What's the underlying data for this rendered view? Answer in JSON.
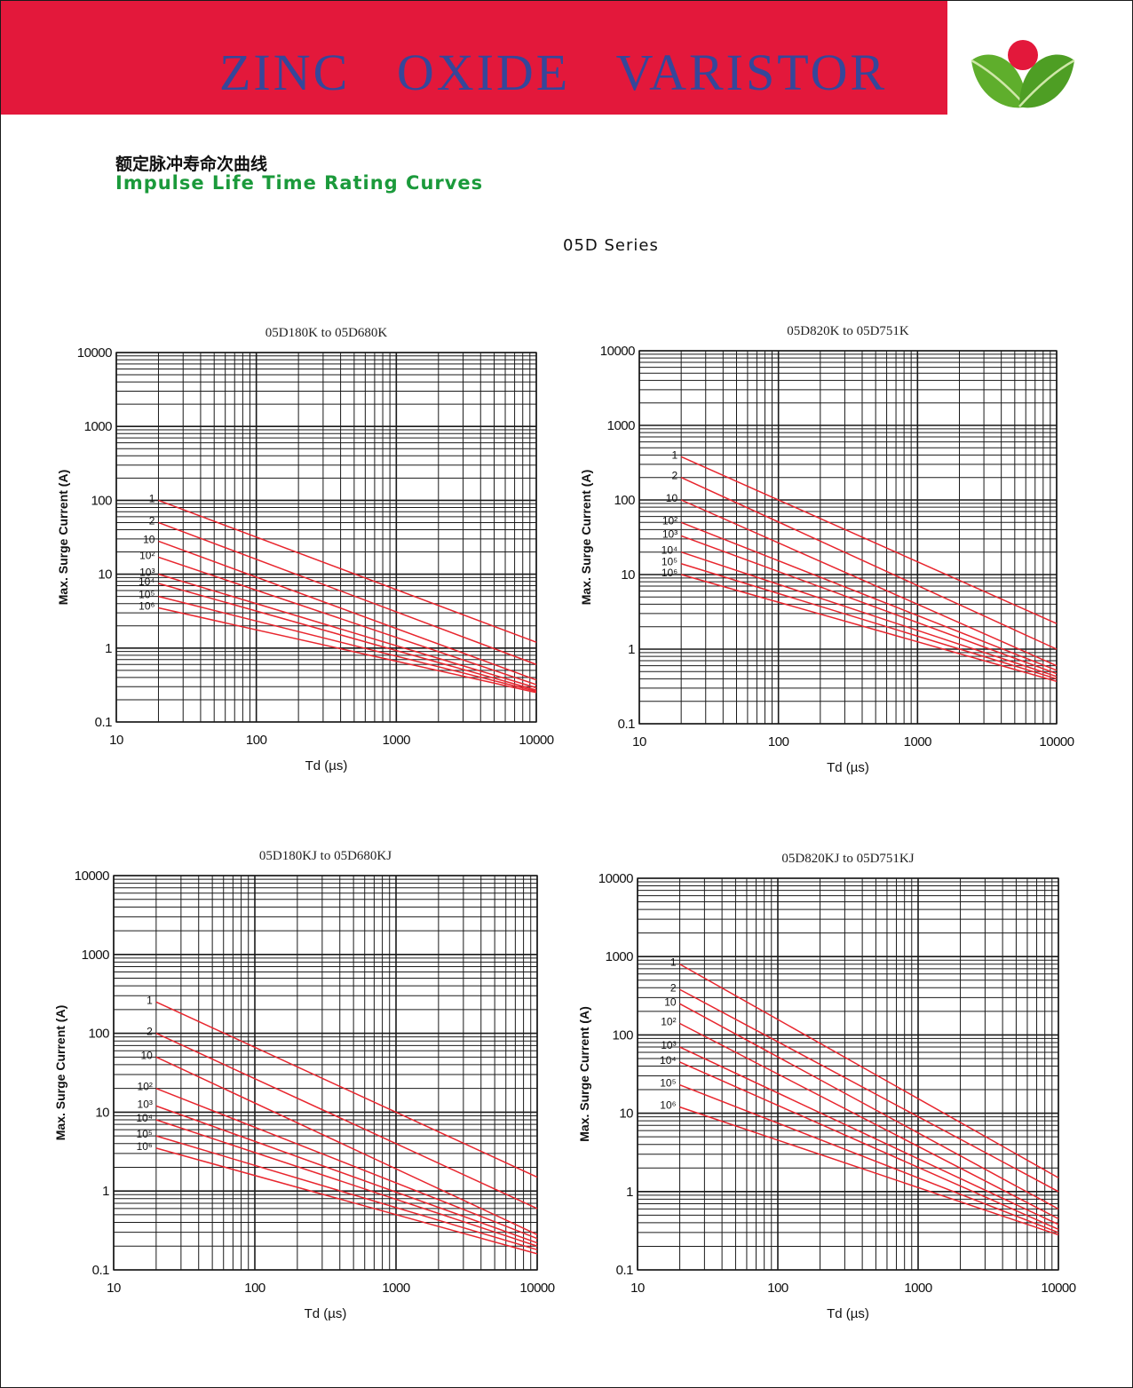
{
  "header": {
    "banner_title": "ZINC   OXIDE   VARISTOR",
    "banner_color": "#e3183b",
    "title_color": "#35479a",
    "logo_icon": "leaves-with-red-dot-logo"
  },
  "page": {
    "title_cn": "额定脉冲寿命次曲线",
    "title_en": "Impulse Life Time Rating Curves",
    "series_label": "05D Series"
  },
  "chart_style": {
    "curve_color": "#e8262e",
    "grid_color": "#1a1a1a"
  },
  "chart_data": [
    {
      "type": "line",
      "title": "05D180K to 05D680K",
      "xlabel": "Td (µs)",
      "ylabel": "Max. Surge Current (A)",
      "xscale": "log",
      "yscale": "log",
      "xlim": [
        10,
        10000
      ],
      "ylim": [
        0.1,
        10000
      ],
      "xticks": [
        "10",
        "100",
        "1000",
        "10000"
      ],
      "yticks": [
        "0.1",
        "1",
        "10",
        "100",
        "1000",
        "10000"
      ],
      "grid": true,
      "series": [
        {
          "name": "1",
          "x": [
            20,
            10000
          ],
          "y": [
            100,
            1.2
          ]
        },
        {
          "name": "2",
          "x": [
            20,
            10000
          ],
          "y": [
            50,
            0.6
          ]
        },
        {
          "name": "10",
          "x": [
            20,
            10000
          ],
          "y": [
            28,
            0.37
          ]
        },
        {
          "name": "10²",
          "x": [
            20,
            10000
          ],
          "y": [
            17,
            0.32
          ]
        },
        {
          "name": "10³",
          "x": [
            20,
            10000
          ],
          "y": [
            10,
            0.29
          ]
        },
        {
          "name": "10⁴",
          "x": [
            20,
            10000
          ],
          "y": [
            7.5,
            0.27
          ]
        },
        {
          "name": "10⁵",
          "x": [
            20,
            10000
          ],
          "y": [
            5,
            0.26
          ]
        },
        {
          "name": "10⁶",
          "x": [
            20,
            10000
          ],
          "y": [
            3.5,
            0.25
          ]
        }
      ]
    },
    {
      "type": "line",
      "title": "05D820K to 05D751K",
      "xlabel": "Td (µs)",
      "ylabel": "Max. Surge Current (A)",
      "xscale": "log",
      "yscale": "log",
      "xlim": [
        10,
        10000
      ],
      "ylim": [
        0.1,
        10000
      ],
      "xticks": [
        "10",
        "100",
        "1000",
        "10000"
      ],
      "yticks": [
        "0.1",
        "1",
        "10",
        "100",
        "1000",
        "10000"
      ],
      "grid": true,
      "series": [
        {
          "name": "1",
          "x": [
            20,
            10000
          ],
          "y": [
            380,
            2.2
          ]
        },
        {
          "name": "2",
          "x": [
            20,
            10000
          ],
          "y": [
            200,
            1.0
          ]
        },
        {
          "name": "10",
          "x": [
            20,
            10000
          ],
          "y": [
            100,
            0.6
          ]
        },
        {
          "name": "10²",
          "x": [
            20,
            10000
          ],
          "y": [
            50,
            0.52
          ]
        },
        {
          "name": "10³",
          "x": [
            20,
            10000
          ],
          "y": [
            33,
            0.47
          ]
        },
        {
          "name": "10⁴",
          "x": [
            20,
            10000
          ],
          "y": [
            20,
            0.43
          ]
        },
        {
          "name": "10⁵",
          "x": [
            20,
            10000
          ],
          "y": [
            14,
            0.4
          ]
        },
        {
          "name": "10⁶",
          "x": [
            20,
            10000
          ],
          "y": [
            10,
            0.37
          ]
        }
      ]
    },
    {
      "type": "line",
      "title": "05D180KJ to 05D680KJ",
      "xlabel": "Td (µs)",
      "ylabel": "Max. Surge Current (A)",
      "xscale": "log",
      "yscale": "log",
      "xlim": [
        10,
        10000
      ],
      "ylim": [
        0.1,
        10000
      ],
      "xticks": [
        "10",
        "100",
        "1000",
        "10000"
      ],
      "yticks": [
        "0.1",
        "1",
        "10",
        "100",
        "1000",
        "10000"
      ],
      "grid": true,
      "series": [
        {
          "name": "1",
          "x": [
            20,
            10000
          ],
          "y": [
            250,
            1.5
          ]
        },
        {
          "name": "2",
          "x": [
            20,
            10000
          ],
          "y": [
            100,
            0.6
          ]
        },
        {
          "name": "10",
          "x": [
            20,
            10000
          ],
          "y": [
            50,
            0.28
          ]
        },
        {
          "name": "10²",
          "x": [
            20,
            10000
          ],
          "y": [
            20,
            0.25
          ]
        },
        {
          "name": "10³",
          "x": [
            20,
            10000
          ],
          "y": [
            12,
            0.22
          ]
        },
        {
          "name": "10⁴",
          "x": [
            20,
            10000
          ],
          "y": [
            8,
            0.2
          ]
        },
        {
          "name": "10⁵",
          "x": [
            20,
            10000
          ],
          "y": [
            5,
            0.18
          ]
        },
        {
          "name": "10⁶",
          "x": [
            20,
            10000
          ],
          "y": [
            3.5,
            0.16
          ]
        }
      ]
    },
    {
      "type": "line",
      "title": "05D820KJ to 05D751KJ",
      "xlabel": "Td (µs)",
      "ylabel": "Max. Surge Current (A)",
      "xscale": "log",
      "yscale": "log",
      "xlim": [
        10,
        10000
      ],
      "ylim": [
        0.1,
        10000
      ],
      "xticks": [
        "10",
        "100",
        "1000",
        "10000"
      ],
      "yticks": [
        "0.1",
        "1",
        "10",
        "100",
        "1000",
        "10000"
      ],
      "grid": true,
      "series": [
        {
          "name": "1",
          "x": [
            20,
            10000
          ],
          "y": [
            800,
            1.5
          ]
        },
        {
          "name": "2",
          "x": [
            20,
            10000
          ],
          "y": [
            380,
            1.0
          ]
        },
        {
          "name": "10",
          "x": [
            20,
            10000
          ],
          "y": [
            250,
            0.6
          ]
        },
        {
          "name": "10²",
          "x": [
            20,
            10000
          ],
          "y": [
            140,
            0.45
          ]
        },
        {
          "name": "10³",
          "x": [
            20,
            10000
          ],
          "y": [
            70,
            0.38
          ]
        },
        {
          "name": "10⁴",
          "x": [
            20,
            10000
          ],
          "y": [
            45,
            0.33
          ]
        },
        {
          "name": "10⁵",
          "x": [
            20,
            10000
          ],
          "y": [
            23,
            0.3
          ]
        },
        {
          "name": "10⁶",
          "x": [
            20,
            10000
          ],
          "y": [
            12,
            0.28
          ]
        }
      ]
    }
  ]
}
